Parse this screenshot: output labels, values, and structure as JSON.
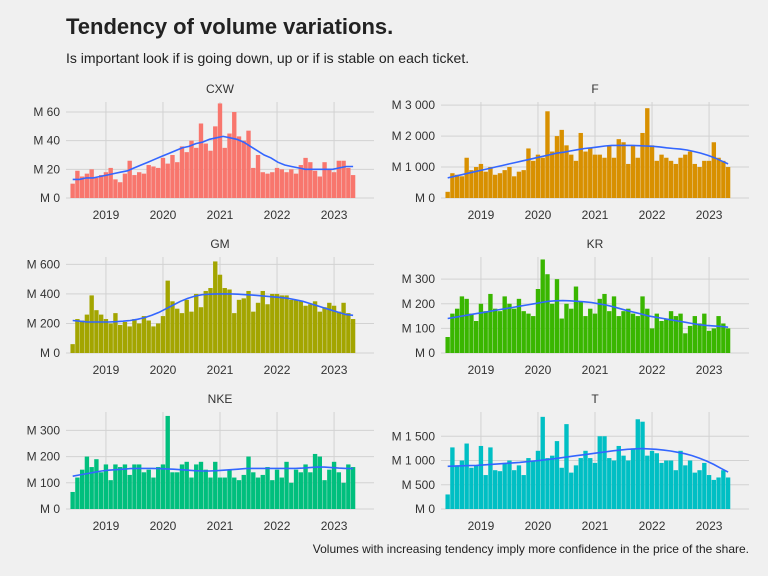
{
  "title": "Tendency of volume variations.",
  "subtitle": "Is important look if is going down, up or if is stable on each ticket.",
  "caption": "Volumes with increasing tendency imply more confidence in the price of the share.",
  "chart_data": [
    {
      "type": "bar",
      "panel": "CXW",
      "color": "#F8766D",
      "trend_color": "#3366ff",
      "x_start": "2018-06",
      "xlim": [
        2018.3,
        2023.7
      ],
      "ylim": [
        0,
        67
      ],
      "x_ticks": [
        2019,
        2020,
        2021,
        2022,
        2023
      ],
      "y_ticks": [
        0,
        20,
        40,
        60
      ],
      "y_tick_labels": [
        "M 0",
        "M 20",
        "M 40",
        "M 60"
      ],
      "values": [
        10,
        19,
        15,
        17,
        20,
        14,
        16,
        18,
        21,
        13,
        11,
        17,
        26,
        16,
        18,
        17,
        23,
        22,
        21,
        28,
        24,
        30,
        25,
        36,
        32,
        40,
        35,
        52,
        38,
        33,
        50,
        66,
        35,
        45,
        60,
        43,
        40,
        47,
        21,
        30,
        18,
        17,
        18,
        21,
        20,
        18,
        20,
        17,
        23,
        28,
        25,
        19,
        15,
        25,
        20,
        18,
        26,
        26,
        21,
        16
      ],
      "trend": [
        13,
        13,
        14,
        14,
        15,
        16,
        17,
        18,
        19,
        21,
        23,
        25,
        27,
        29,
        31,
        33,
        35,
        36,
        38,
        39,
        41,
        42,
        43,
        42,
        41,
        39,
        36,
        33,
        30,
        28,
        25,
        23,
        22,
        21,
        20,
        20,
        20,
        20,
        20,
        21,
        22,
        22
      ]
    },
    {
      "type": "bar",
      "panel": "F",
      "color": "#D89000",
      "trend_color": "#3366ff",
      "x_start": "2018-06",
      "xlim": [
        2018.3,
        2023.7
      ],
      "ylim": [
        0,
        3100
      ],
      "x_ticks": [
        2019,
        2020,
        2021,
        2022,
        2023
      ],
      "y_ticks": [
        0,
        1000,
        2000,
        3000
      ],
      "y_tick_labels": [
        "M 0",
        "M 1 000",
        "M 2 000",
        "M 3 000"
      ],
      "values": [
        200,
        800,
        750,
        700,
        1300,
        900,
        1000,
        1100,
        850,
        1000,
        750,
        800,
        900,
        1000,
        700,
        850,
        900,
        1600,
        1200,
        1400,
        1300,
        2800,
        1500,
        2000,
        2200,
        1700,
        1400,
        1200,
        2100,
        1500,
        1600,
        1400,
        1400,
        1300,
        1700,
        1300,
        1900,
        1800,
        1100,
        1700,
        1300,
        2100,
        2900,
        1700,
        1200,
        1400,
        1300,
        1200,
        1100,
        1300,
        1400,
        1500,
        1100,
        1000,
        1200,
        1200,
        1800,
        1300,
        1200,
        1000
      ],
      "trend": [
        650,
        700,
        750,
        800,
        850,
        900,
        950,
        1000,
        1050,
        1100,
        1150,
        1200,
        1250,
        1300,
        1350,
        1400,
        1450,
        1480,
        1520,
        1560,
        1600,
        1620,
        1650,
        1680,
        1700,
        1700,
        1700,
        1700,
        1690,
        1680,
        1670,
        1650,
        1620,
        1600,
        1580,
        1550,
        1500,
        1450,
        1380,
        1300,
        1200,
        1100
      ]
    },
    {
      "type": "bar",
      "panel": "GM",
      "color": "#A3A500",
      "trend_color": "#3366ff",
      "x_start": "2018-06",
      "xlim": [
        2018.3,
        2023.7
      ],
      "ylim": [
        0,
        650
      ],
      "x_ticks": [
        2019,
        2020,
        2021,
        2022,
        2023
      ],
      "y_ticks": [
        0,
        200,
        400,
        600
      ],
      "y_tick_labels": [
        "M 0",
        "M 200",
        "M 400",
        "M 600"
      ],
      "values": [
        60,
        230,
        220,
        260,
        390,
        290,
        260,
        230,
        200,
        270,
        190,
        210,
        180,
        230,
        200,
        250,
        220,
        180,
        200,
        250,
        490,
        350,
        300,
        270,
        360,
        280,
        400,
        310,
        420,
        440,
        620,
        530,
        440,
        430,
        270,
        360,
        370,
        420,
        280,
        340,
        420,
        330,
        400,
        400,
        390,
        390,
        360,
        360,
        350,
        320,
        330,
        350,
        280,
        310,
        340,
        320,
        280,
        340,
        270,
        230
      ],
      "trend": [
        220,
        215,
        210,
        210,
        210,
        210,
        212,
        215,
        220,
        228,
        240,
        255,
        275,
        300,
        325,
        350,
        370,
        385,
        395,
        398,
        400,
        400,
        400,
        398,
        395,
        392,
        388,
        384,
        380,
        375,
        370,
        360,
        350,
        335,
        320,
        305,
        290,
        275,
        260,
        255
      ]
    },
    {
      "type": "bar",
      "panel": "KR",
      "color": "#39B600",
      "trend_color": "#3366ff",
      "x_start": "2018-06",
      "xlim": [
        2018.3,
        2023.7
      ],
      "ylim": [
        0,
        390
      ],
      "x_ticks": [
        2019,
        2020,
        2021,
        2022,
        2023
      ],
      "y_ticks": [
        0,
        100,
        200,
        300
      ],
      "y_tick_labels": [
        "M 0",
        "M 100",
        "M 200",
        "M 300"
      ],
      "values": [
        65,
        160,
        180,
        230,
        220,
        160,
        130,
        200,
        170,
        240,
        180,
        170,
        230,
        200,
        180,
        220,
        170,
        160,
        150,
        260,
        380,
        320,
        200,
        300,
        140,
        200,
        180,
        270,
        210,
        150,
        180,
        160,
        220,
        240,
        170,
        230,
        150,
        170,
        180,
        160,
        150,
        230,
        180,
        100,
        160,
        130,
        140,
        170,
        150,
        160,
        80,
        110,
        150,
        120,
        160,
        90,
        100,
        150,
        120,
        100
      ],
      "trend": [
        140,
        145,
        150,
        155,
        160,
        165,
        170,
        175,
        180,
        185,
        190,
        195,
        200,
        205,
        210,
        212,
        213,
        212,
        210,
        208,
        205,
        200,
        195,
        188,
        180,
        172,
        165,
        158,
        150,
        145,
        140,
        135,
        130,
        125,
        120,
        115,
        112,
        110,
        108,
        105
      ]
    },
    {
      "type": "bar",
      "panel": "NKE",
      "color": "#00BF7D",
      "trend_color": "#3366ff",
      "x_start": "2018-06",
      "xlim": [
        2018.3,
        2023.7
      ],
      "ylim": [
        0,
        370
      ],
      "x_ticks": [
        2019,
        2020,
        2021,
        2022,
        2023
      ],
      "y_ticks": [
        0,
        100,
        200,
        300
      ],
      "y_tick_labels": [
        "M 0",
        "M 100",
        "M 200",
        "M 300"
      ],
      "values": [
        65,
        120,
        150,
        200,
        160,
        190,
        140,
        170,
        110,
        170,
        160,
        170,
        130,
        170,
        170,
        140,
        150,
        120,
        160,
        170,
        355,
        140,
        140,
        170,
        180,
        120,
        170,
        180,
        150,
        120,
        180,
        120,
        120,
        150,
        120,
        110,
        130,
        200,
        140,
        120,
        130,
        160,
        110,
        150,
        120,
        180,
        100,
        150,
        140,
        170,
        140,
        210,
        200,
        110,
        150,
        180,
        140,
        100,
        170,
        160
      ],
      "trend": [
        125,
        130,
        135,
        140,
        145,
        148,
        150,
        152,
        154,
        155,
        155,
        155,
        154,
        153,
        152,
        150,
        148,
        146,
        145,
        145,
        146,
        148,
        150,
        152,
        154,
        155,
        155,
        155,
        155,
        155,
        155,
        155,
        156,
        158,
        160,
        160,
        158,
        156,
        155,
        154
      ]
    },
    {
      "type": "bar",
      "panel": "T",
      "color": "#00BFC4",
      "trend_color": "#3366ff",
      "x_start": "2018-06",
      "xlim": [
        2018.3,
        2023.7
      ],
      "ylim": [
        0,
        2000
      ],
      "x_ticks": [
        2019,
        2020,
        2021,
        2022,
        2023
      ],
      "y_ticks": [
        0,
        500,
        1000,
        1500
      ],
      "y_tick_labels": [
        "M 0",
        "M 500",
        "M 1 000",
        "M 1 500"
      ],
      "values": [
        300,
        1270,
        900,
        1000,
        1350,
        850,
        900,
        1300,
        700,
        1270,
        800,
        780,
        950,
        1000,
        800,
        900,
        700,
        1050,
        1000,
        1200,
        1900,
        1050,
        1100,
        1400,
        850,
        1750,
        750,
        900,
        1050,
        1200,
        1050,
        950,
        1500,
        1500,
        1050,
        1000,
        1300,
        1100,
        1000,
        1250,
        1850,
        1800,
        1100,
        1200,
        1150,
        950,
        1000,
        1000,
        800,
        1200,
        900,
        1000,
        750,
        800,
        950,
        700,
        600,
        650,
        800,
        650
      ],
      "trend": [
        880,
        885,
        890,
        895,
        900,
        910,
        920,
        930,
        940,
        950,
        960,
        975,
        990,
        1005,
        1020,
        1040,
        1060,
        1080,
        1100,
        1120,
        1140,
        1160,
        1180,
        1200,
        1215,
        1230,
        1240,
        1245,
        1240,
        1230,
        1215,
        1195,
        1170,
        1140,
        1100,
        1050,
        990,
        920,
        840,
        760
      ]
    }
  ]
}
